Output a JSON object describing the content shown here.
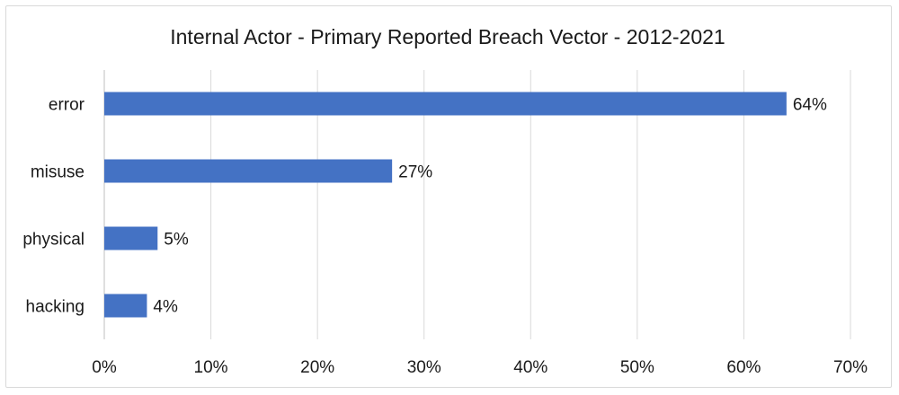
{
  "chart_data": {
    "type": "bar",
    "orientation": "horizontal",
    "title": "Internal Actor - Primary Reported Breach Vector - 2012-2021",
    "categories": [
      "error",
      "misuse",
      "physical",
      "hacking"
    ],
    "values": [
      64,
      27,
      5,
      4
    ],
    "data_labels": [
      "64%",
      "27%",
      "5%",
      "4%"
    ],
    "xlim": [
      0,
      70
    ],
    "x_ticks": [
      0,
      10,
      20,
      30,
      40,
      50,
      60,
      70
    ],
    "x_tick_labels": [
      "0%",
      "10%",
      "20%",
      "30%",
      "40%",
      "50%",
      "60%",
      "70%"
    ],
    "grid": true,
    "legend": "none",
    "bar_color": "#4472c4"
  }
}
